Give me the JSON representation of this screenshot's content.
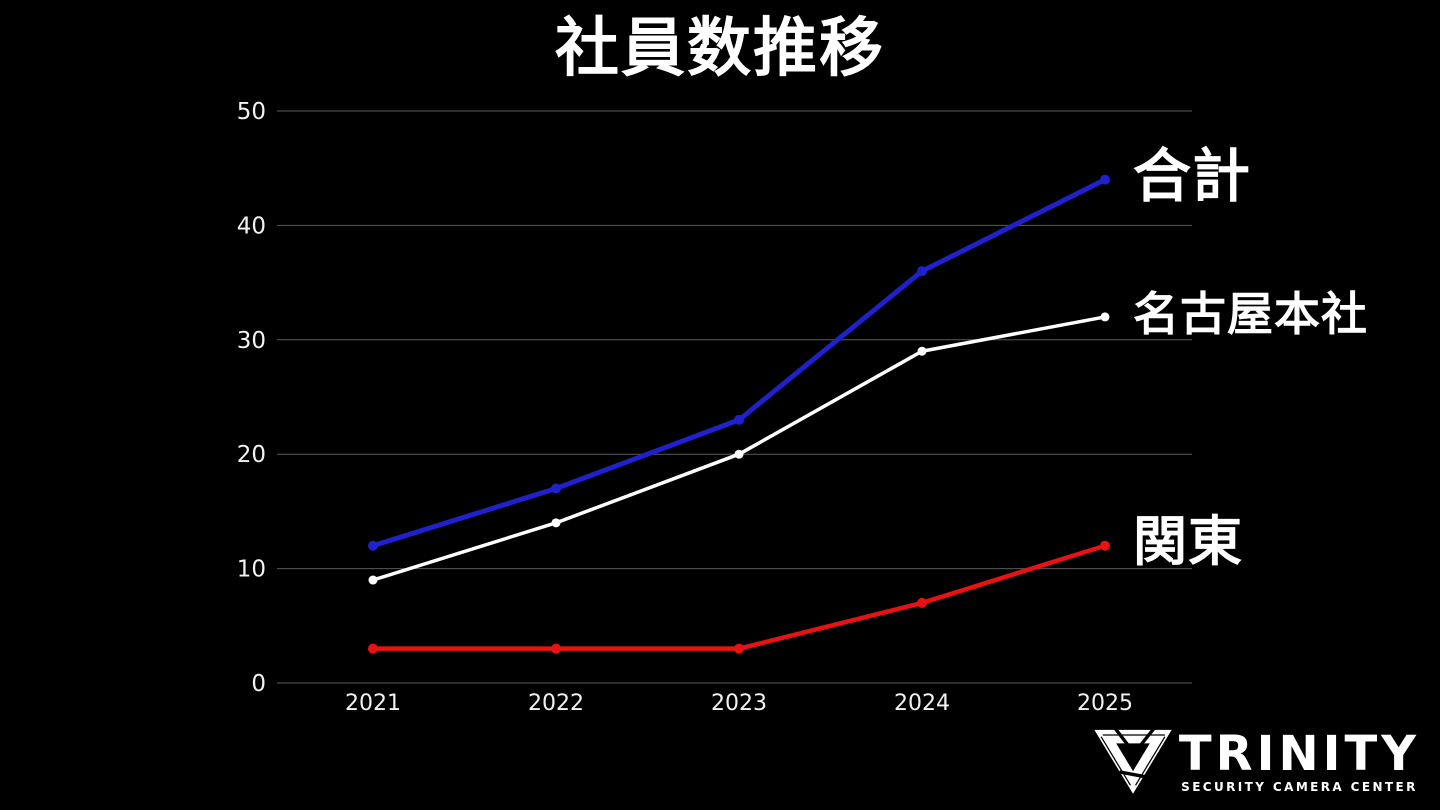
{
  "slide": {
    "background": "#000000"
  },
  "chart_data": {
    "type": "line",
    "title": "社員数推移",
    "categories": [
      "2021",
      "2022",
      "2023",
      "2024",
      "2025"
    ],
    "series": [
      {
        "name": "合計",
        "color": "#2020cc",
        "values": [
          12,
          17,
          23,
          36,
          44
        ]
      },
      {
        "name": "名古屋本社",
        "color": "#ffffff",
        "values": [
          9,
          14,
          20,
          29,
          32
        ]
      },
      {
        "name": "関東",
        "color": "#e81212",
        "values": [
          3,
          3,
          3,
          7,
          12
        ]
      }
    ],
    "xlabel": "",
    "ylabel": "",
    "ylim": [
      0,
      50
    ],
    "yticks": [
      0,
      10,
      20,
      30,
      40,
      50
    ],
    "grid": true,
    "gridline_color": "#5a5a5a",
    "tick_color": "#f2f2f2",
    "legend": "direct labels at right end of each line"
  },
  "logo": {
    "brand": "TRINITY",
    "tagline": "SECURITY CAMERA CENTER",
    "color": "#ffffff"
  }
}
